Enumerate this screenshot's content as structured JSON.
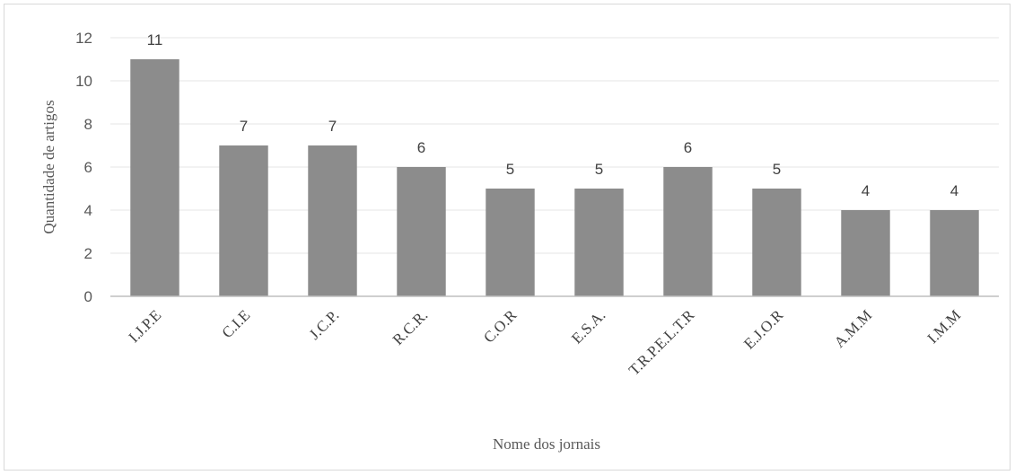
{
  "chart_data": {
    "type": "bar",
    "title": "",
    "xlabel": "Nome dos jornais",
    "ylabel": "Quantidade de artigos",
    "categories": [
      "I.J.P.E",
      "C.I.E",
      "J.C.P.",
      "R.C.R.",
      "C.O.R",
      "E.S.A.",
      "T.R.P.E.L.T.R",
      "E.J.O.R",
      "A.M.M",
      "I.M.M"
    ],
    "values": [
      11,
      7,
      7,
      6,
      5,
      5,
      6,
      5,
      4,
      4
    ],
    "ylim": [
      0,
      12
    ],
    "yticks": [
      0,
      2,
      4,
      6,
      8,
      10,
      12
    ],
    "grid": true,
    "legend": "none",
    "colors": {
      "bar": "#8c8c8c",
      "grid": "#e6e6e6",
      "axis": "#bfbfbf"
    }
  }
}
